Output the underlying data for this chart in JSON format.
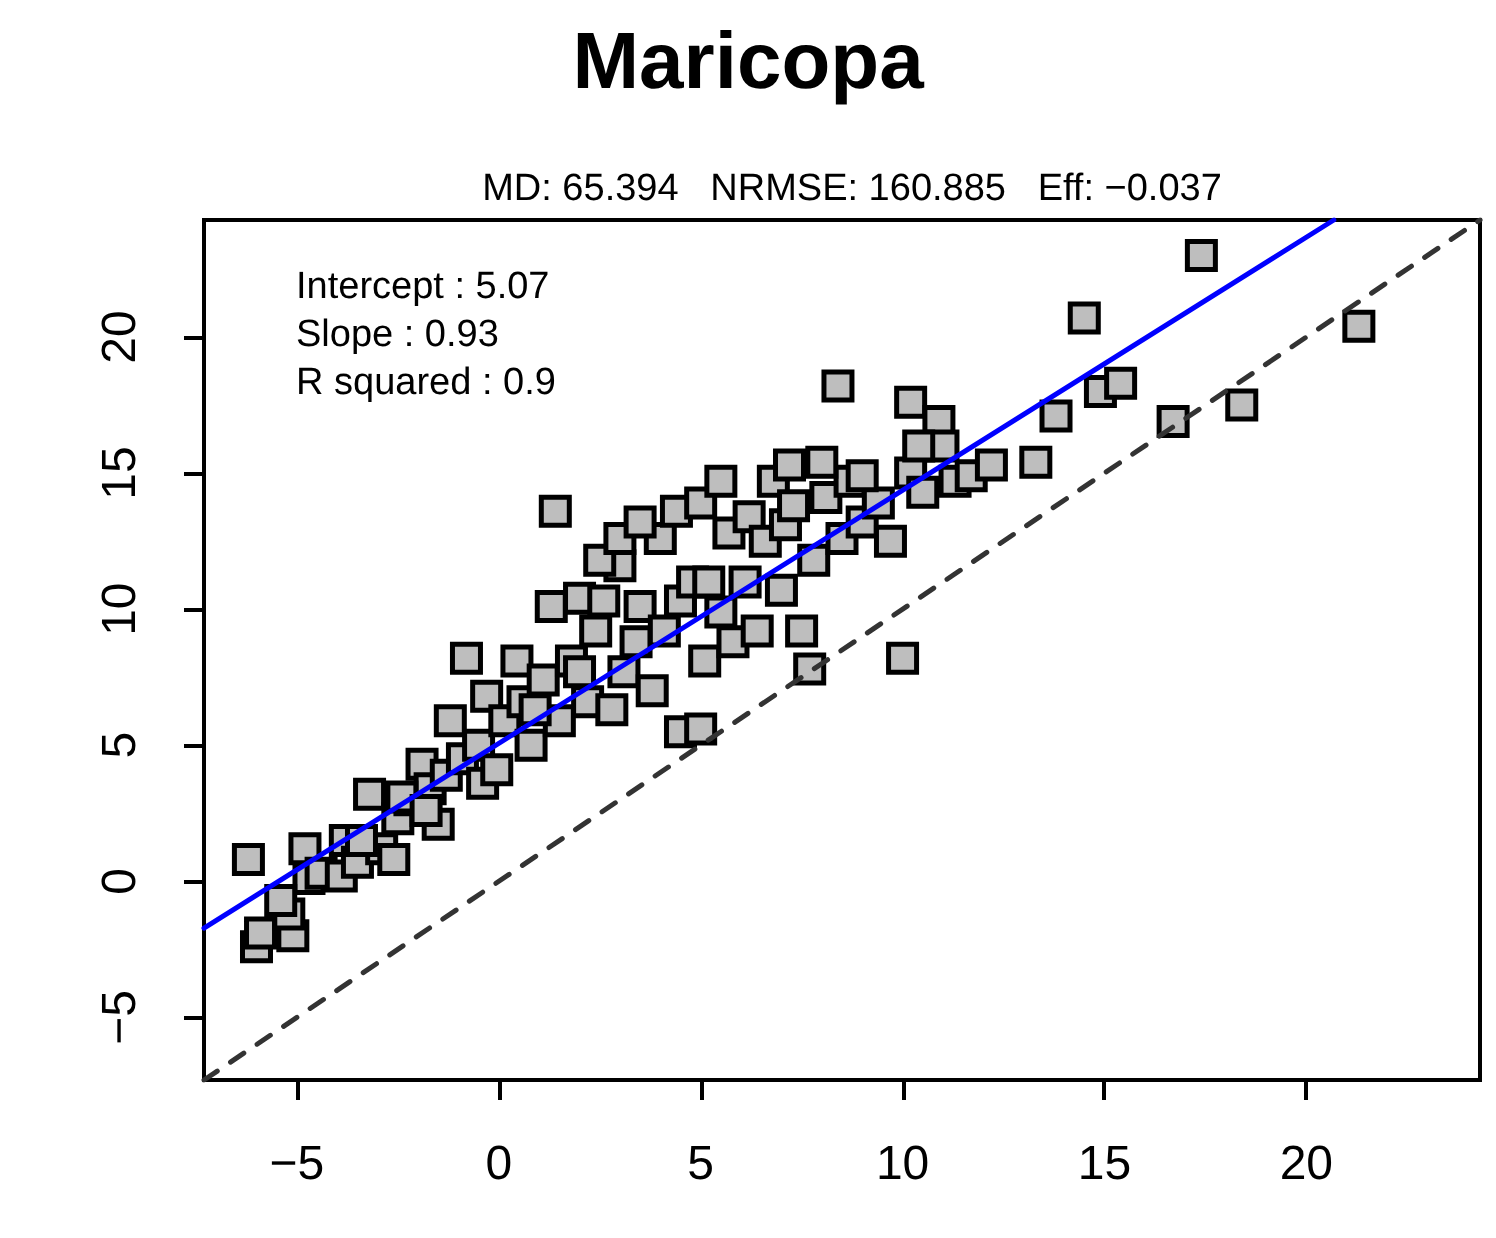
{
  "chart_data": {
    "type": "scatter",
    "title": "Maricopa",
    "subtitle": "MD: 65.394   NRMSE: 160.885   Eff: −0.037",
    "annotations": [
      "Intercept : 5.07",
      "Slope : 0.93",
      "R squared : 0.9"
    ],
    "xlim": [
      -7.3,
      24.3
    ],
    "ylim": [
      -7.3,
      24.3
    ],
    "xticks": [
      -5,
      0,
      5,
      10,
      15,
      20
    ],
    "yticks": [
      -5,
      0,
      5,
      10,
      15,
      20
    ],
    "grid": false,
    "series": [
      {
        "marker": "square",
        "color": "#bebebe",
        "x": [
          -6.2,
          -6.0,
          -5.9,
          -5.1,
          -5.2,
          -4.8,
          -4.7,
          -5.4,
          -4.4,
          -3.9,
          -3.8,
          -3.5,
          -3.2,
          -2.9,
          -2.6,
          -2.5,
          -2.2,
          -1.9,
          -1.7,
          -1.5,
          -1.3,
          -1.2,
          -0.9,
          -0.8,
          -0.5,
          -0.4,
          -0.3,
          -0.05,
          0.15,
          0.45,
          0.6,
          0.8,
          1.1,
          1.3,
          1.4,
          1.5,
          1.8,
          2.0,
          2.2,
          2.4,
          2.6,
          2.8,
          3.0,
          3.1,
          3.4,
          3.5,
          3.8,
          4.0,
          4.1,
          4.4,
          4.5,
          4.5,
          4.8,
          5.0,
          5.1,
          5.2,
          5.5,
          5.7,
          5.8,
          6.1,
          6.2,
          6.4,
          6.6,
          6.8,
          7.0,
          7.1,
          7.3,
          7.5,
          7.7,
          7.8,
          8.1,
          8.4,
          8.5,
          8.7,
          9.0,
          9.4,
          9.7,
          10.0,
          10.2,
          10.2,
          10.5,
          10.9,
          11.0,
          11.3,
          11.7,
          12.2,
          13.3,
          13.8,
          14.5,
          14.9,
          15.4,
          16.7,
          17.4,
          18.4,
          21.3,
          5.0,
          5.5,
          7.2,
          8.0,
          9.0,
          10.4,
          2.5,
          3.0,
          3.5,
          0.9,
          2.0,
          -2.4,
          -1.8,
          -3.4
        ],
        "values": [
          0.8,
          -2.4,
          -1.9,
          -2.0,
          -1.2,
          1.2,
          0.1,
          -0.7,
          0.3,
          0.2,
          1.5,
          0.7,
          3.2,
          1.2,
          0.8,
          2.3,
          3.0,
          4.3,
          3.4,
          2.1,
          3.9,
          5.9,
          4.5,
          8.2,
          5.0,
          3.6,
          6.8,
          4.1,
          5.9,
          8.1,
          6.6,
          5.0,
          7.4,
          10.1,
          13.6,
          5.9,
          8.1,
          10.4,
          6.6,
          9.2,
          10.3,
          6.3,
          11.6,
          7.7,
          8.8,
          10.1,
          7.0,
          12.6,
          9.2,
          13.6,
          10.3,
          5.5,
          11.0,
          5.6,
          8.1,
          11.0,
          9.9,
          12.8,
          8.8,
          11.0,
          13.4,
          9.2,
          12.5,
          14.7,
          10.7,
          13.1,
          13.8,
          9.2,
          7.8,
          11.8,
          14.1,
          18.2,
          12.6,
          14.7,
          13.2,
          13.9,
          12.5,
          8.2,
          17.6,
          15.0,
          14.3,
          16.9,
          16.0,
          14.7,
          14.9,
          15.3,
          15.4,
          17.1,
          20.7,
          18.0,
          18.3,
          16.9,
          23.0,
          17.5,
          20.4,
          13.9,
          14.7,
          15.3,
          15.4,
          14.9,
          16.0,
          11.8,
          12.6,
          13.2,
          6.3,
          7.7,
          3.1,
          2.6,
          1.5
        ]
      },
      {
        "type": "line",
        "marker": "none",
        "line_style": "solid",
        "color": "#0000ff",
        "x": [
          -7.3,
          20.68
        ],
        "values": [
          -1.72,
          24.3
        ]
      },
      {
        "type": "line",
        "marker": "none",
        "line_style": "dashed",
        "color": "#333333",
        "x": [
          -7.3,
          24.3
        ],
        "values": [
          -7.3,
          24.3
        ]
      }
    ]
  }
}
